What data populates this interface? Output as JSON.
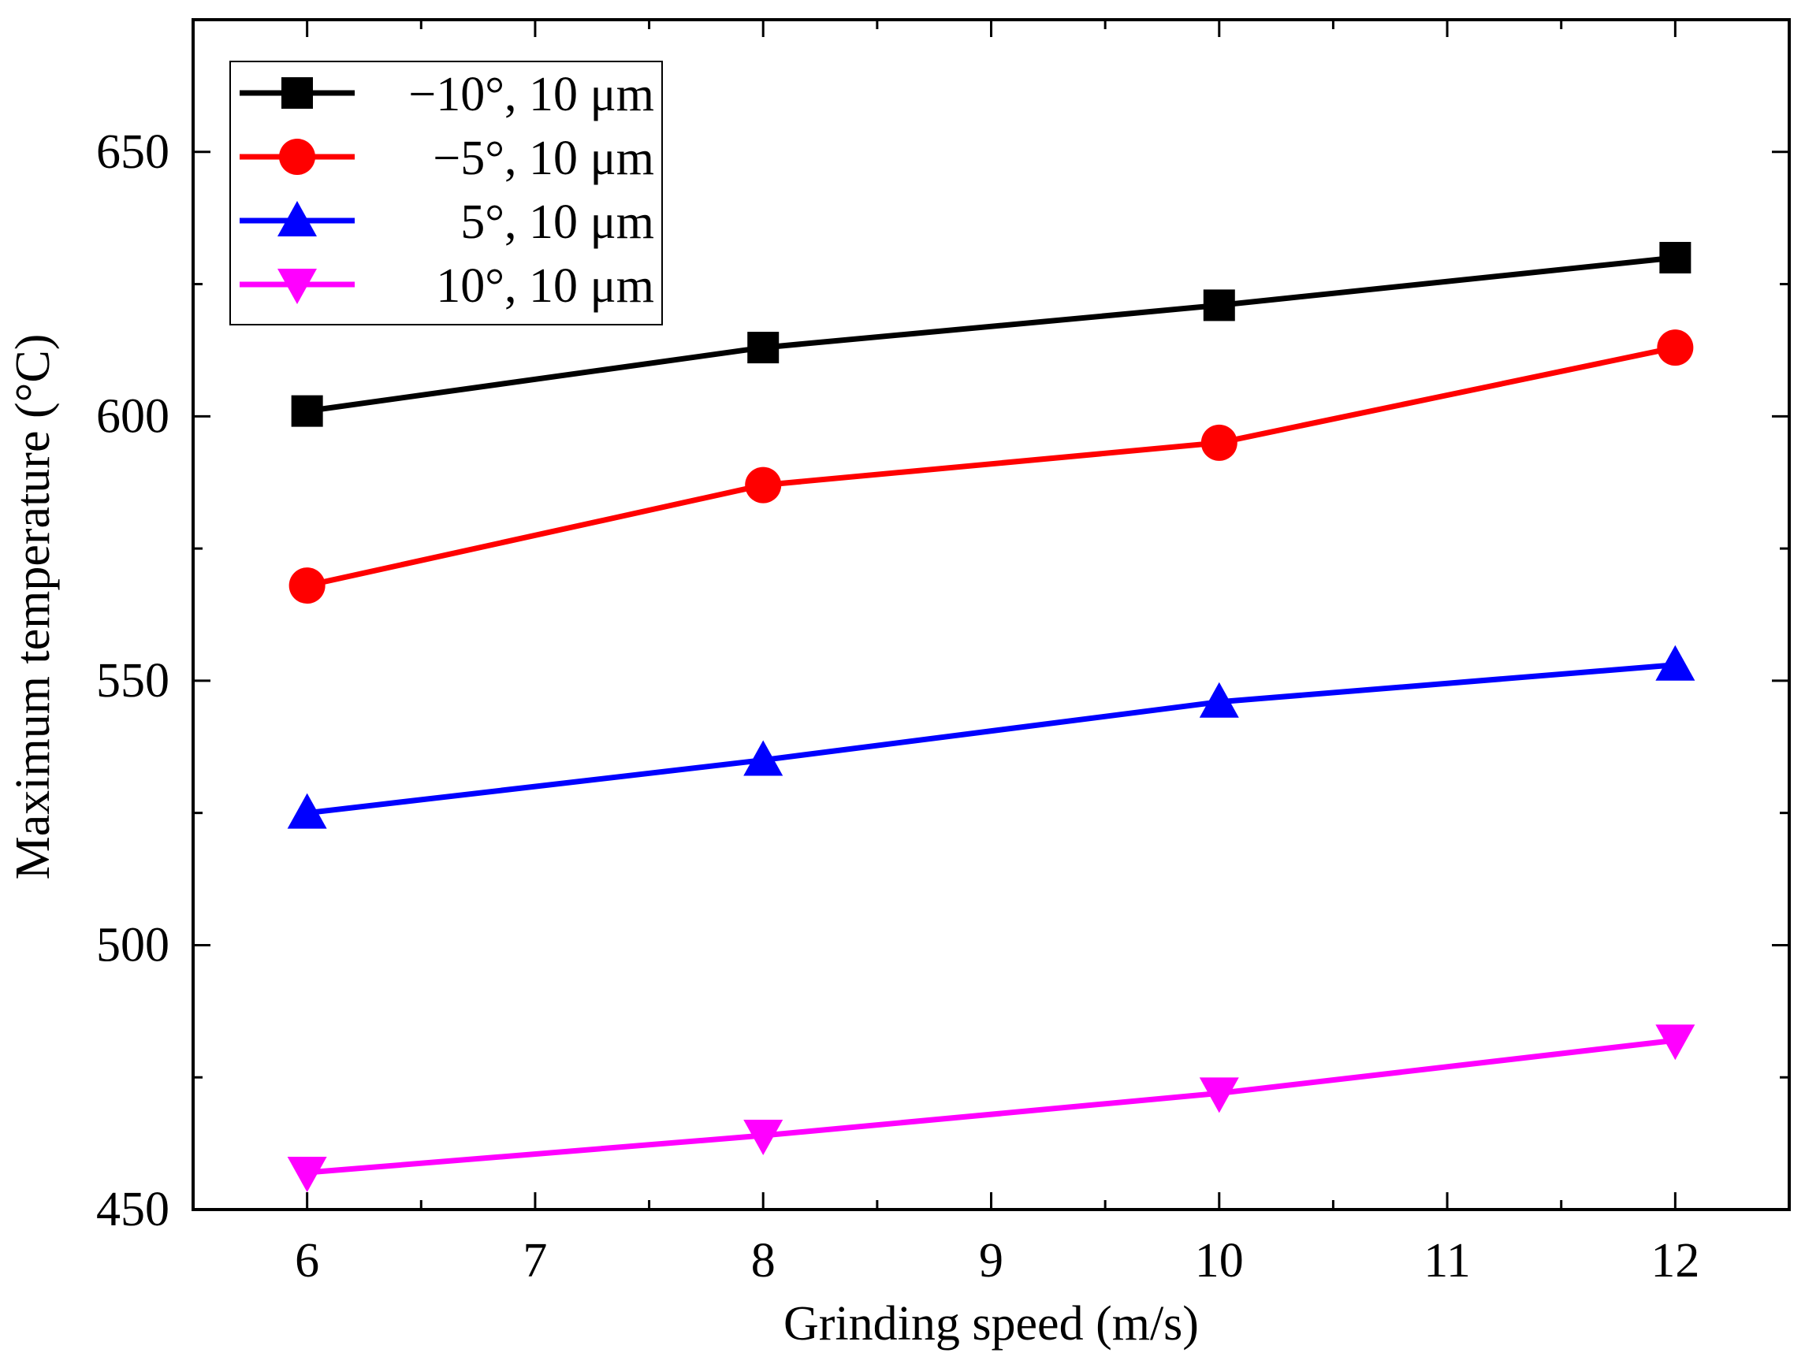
{
  "chart_data": {
    "type": "line",
    "title": "",
    "xlabel": "Grinding speed (m/s)",
    "ylabel": "Maximum temperature (°C)",
    "xlim": [
      5.5,
      12.5
    ],
    "ylim": [
      450,
      675
    ],
    "xticks": [
      6,
      7,
      8,
      9,
      10,
      11,
      12
    ],
    "yticks": [
      450,
      500,
      550,
      600,
      650
    ],
    "x": [
      6,
      8,
      10,
      12
    ],
    "grid": false,
    "legend_position": "top-left",
    "series": [
      {
        "name": "−10°, 10 μm",
        "color": "#000000",
        "marker": "square",
        "values": [
          601,
          613,
          621,
          630
        ]
      },
      {
        "name": "−5°, 10 μm",
        "color": "#ff0000",
        "marker": "circle",
        "values": [
          568,
          587,
          595,
          613
        ]
      },
      {
        "name": "5°, 10 μm",
        "color": "#0000ff",
        "marker": "triangle-up",
        "values": [
          525,
          535,
          546,
          553
        ]
      },
      {
        "name": "10°, 10 μm",
        "color": "#ff00ff",
        "marker": "triangle-down",
        "values": [
          457,
          464,
          472,
          482
        ]
      }
    ]
  }
}
